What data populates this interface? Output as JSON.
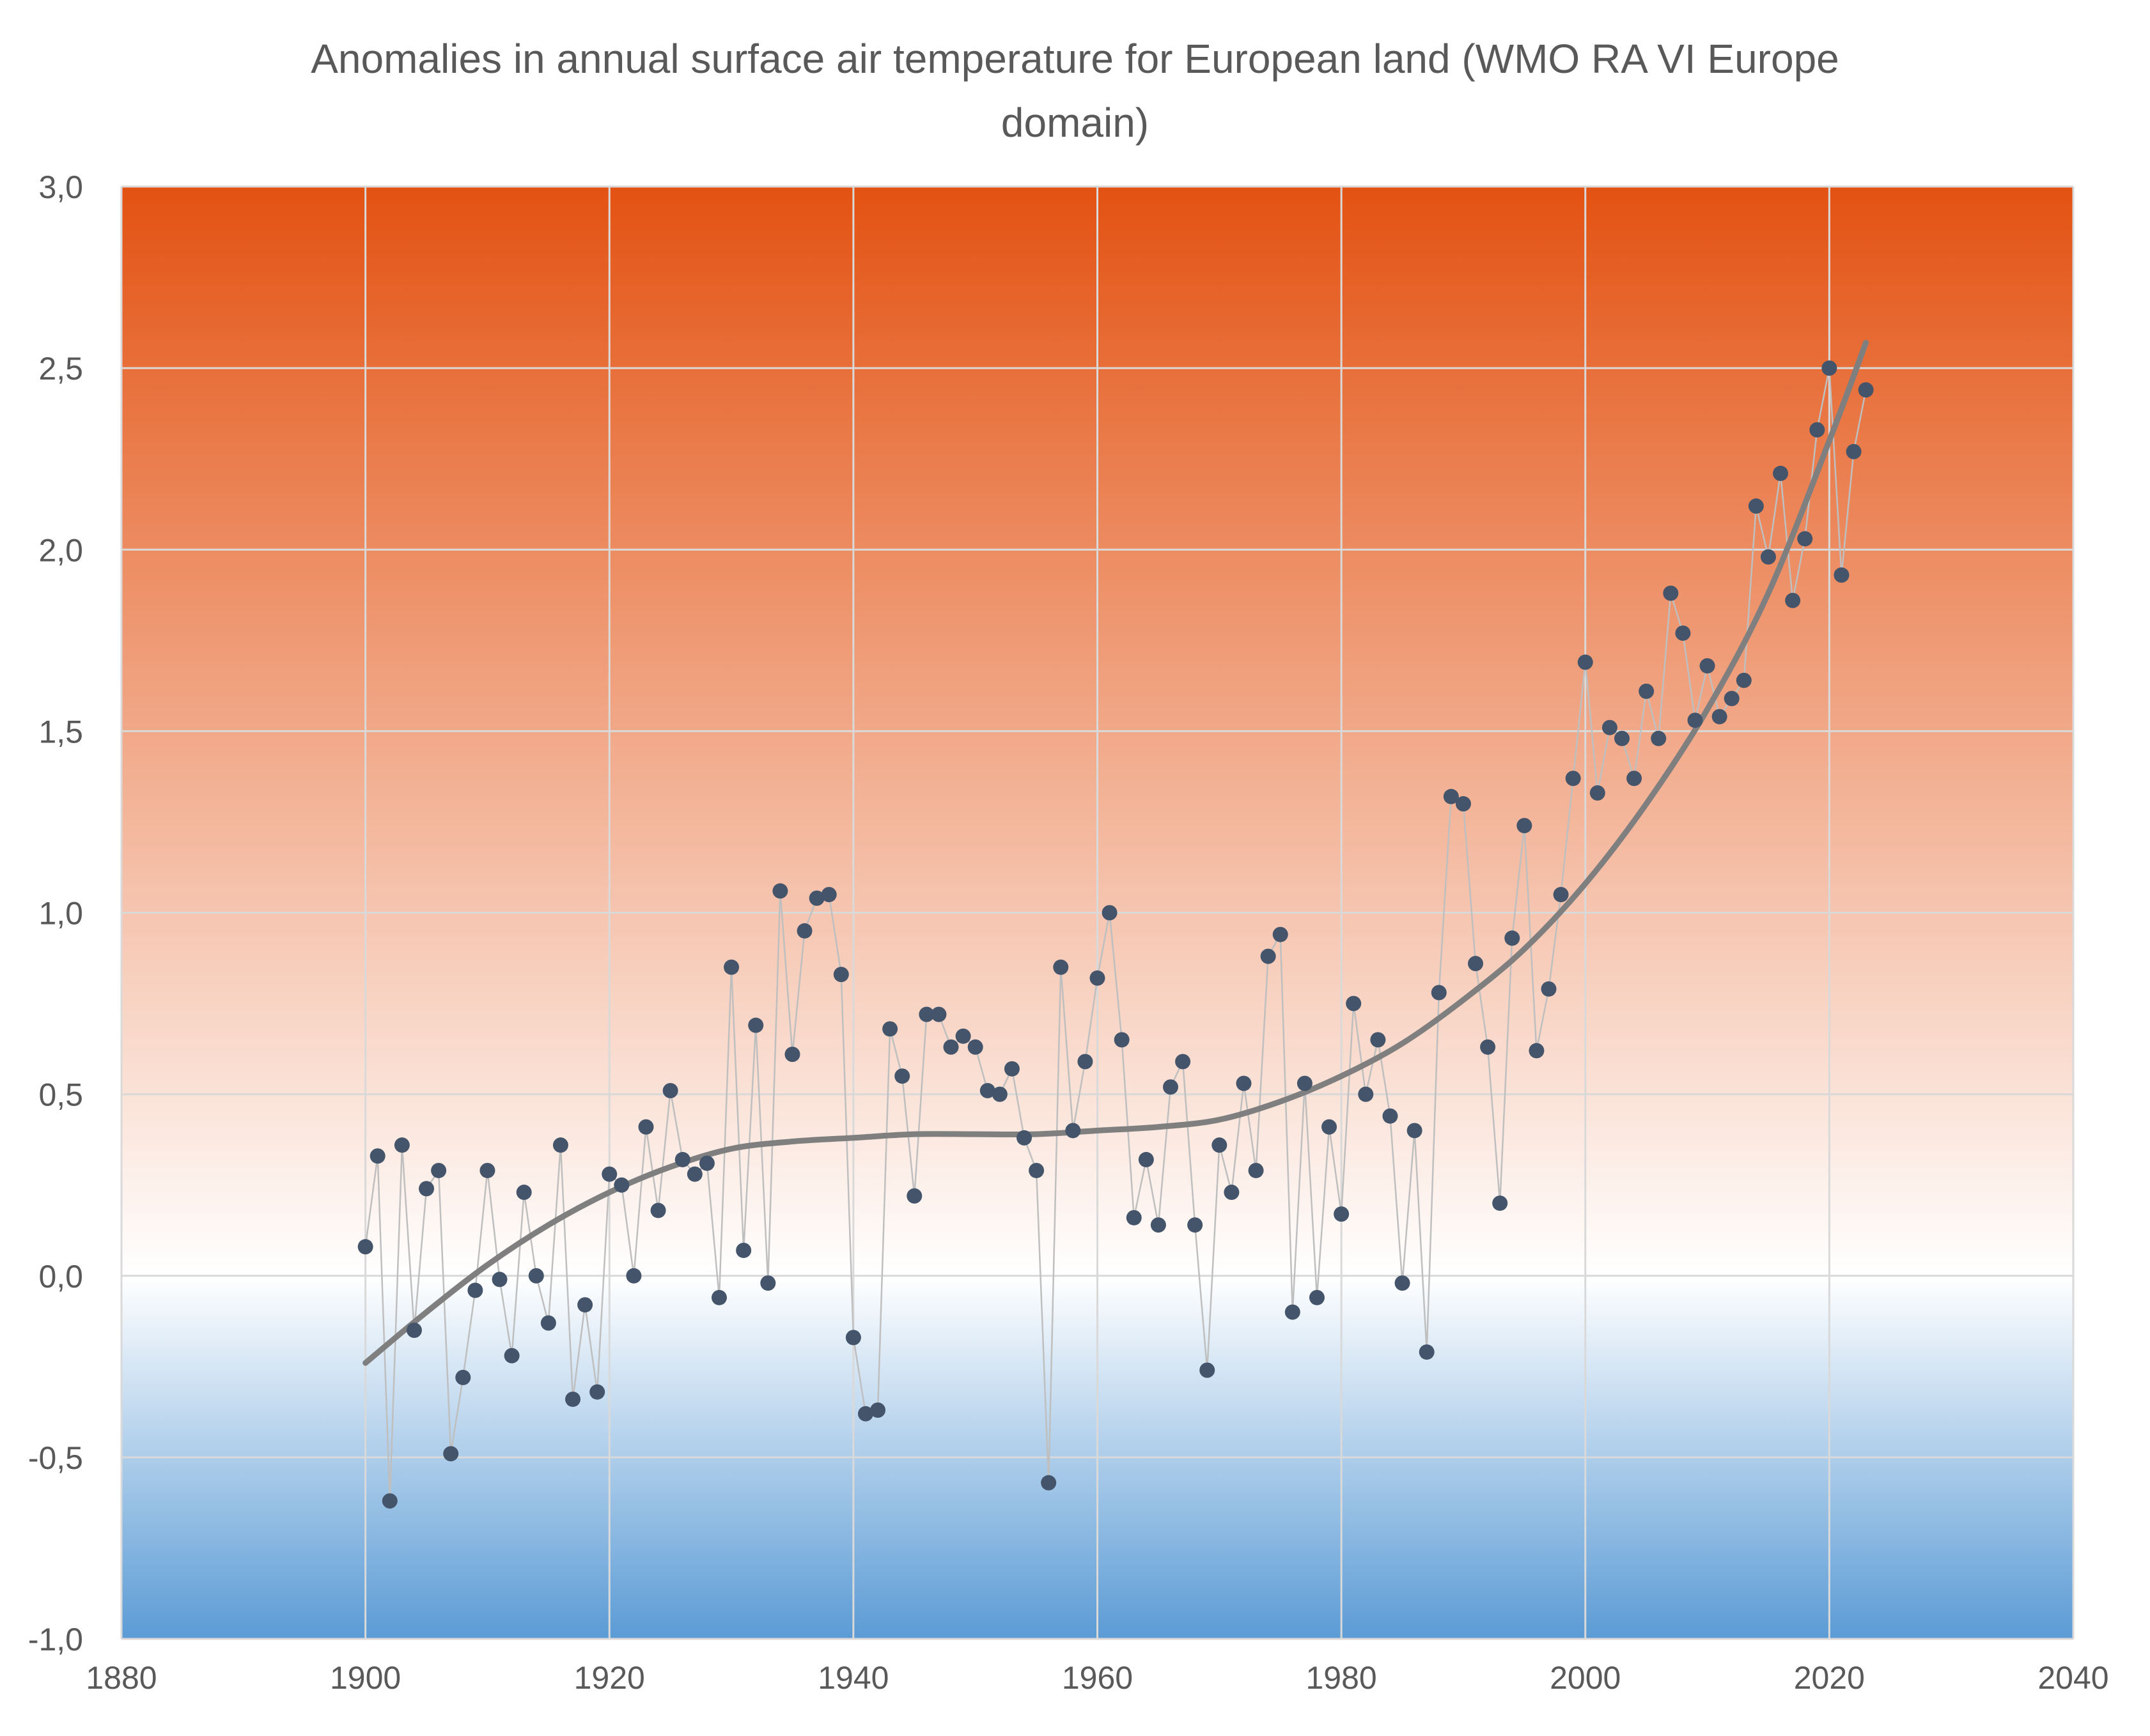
{
  "chart_data": {
    "type": "scatter",
    "title_lines": [
      "Anomalies in annual surface air temperature for European land (WMO RA VI Europe",
      "domain)"
    ],
    "xlabel": "",
    "ylabel": "",
    "xlim": [
      1880,
      2040
    ],
    "ylim": [
      -1.0,
      3.0
    ],
    "x_ticks": [
      1880,
      1900,
      1920,
      1940,
      1960,
      1980,
      2000,
      2020,
      2040
    ],
    "y_ticks": [
      -1.0,
      -0.5,
      0.0,
      0.5,
      1.0,
      1.5,
      2.0,
      2.5,
      3.0
    ],
    "x_tick_labels": [
      "1880",
      "1900",
      "1920",
      "1940",
      "1960",
      "1980",
      "2000",
      "2020",
      "2040"
    ],
    "y_tick_labels": [
      "-1,0",
      "-0,5",
      "0,0",
      "0,5",
      "1,0",
      "1,5",
      "2,0",
      "2,5",
      "3,0"
    ],
    "grid": true,
    "legend": "none",
    "background": {
      "top_color": "#e35212",
      "zero_color": "#ffffff",
      "bottom_color": "#5b9bd5"
    },
    "colors": {
      "points": "#44546a",
      "connector": "#bfbfbf",
      "trend": "#7f7f7f",
      "grid": "#d9d9d9"
    },
    "series": [
      {
        "style": "points",
        "x": [
          1900,
          1901,
          1902,
          1903,
          1904,
          1905,
          1906,
          1907,
          1908,
          1909,
          1910,
          1911,
          1912,
          1913,
          1914,
          1915,
          1916,
          1917,
          1918,
          1919,
          1920,
          1921,
          1922,
          1923,
          1924,
          1925,
          1926,
          1927,
          1928,
          1929,
          1930,
          1931,
          1932,
          1933,
          1934,
          1935,
          1936,
          1937,
          1938,
          1939,
          1940,
          1941,
          1942,
          1943,
          1944,
          1945,
          1946,
          1947,
          1948,
          1949,
          1950,
          1951,
          1952,
          1953,
          1954,
          1955,
          1956,
          1957,
          1958,
          1959,
          1960,
          1961,
          1962,
          1963,
          1964,
          1965,
          1966,
          1967,
          1968,
          1969,
          1970,
          1971,
          1972,
          1973,
          1974,
          1975,
          1976,
          1977,
          1978,
          1979,
          1980,
          1981,
          1982,
          1983,
          1984,
          1985,
          1986,
          1987,
          1988,
          1989,
          1990,
          1991,
          1992,
          1993,
          1994,
          1995,
          1996,
          1997,
          1998,
          1999,
          2000,
          2001,
          2002,
          2003,
          2004,
          2005,
          2006,
          2007,
          2008,
          2009,
          2010,
          2011,
          2012,
          2013,
          2014,
          2015,
          2016,
          2017,
          2018,
          2019,
          2020,
          2021,
          2022,
          2023
        ],
        "y": [
          0.08,
          0.33,
          -0.62,
          0.36,
          -0.15,
          0.24,
          0.29,
          -0.49,
          -0.28,
          -0.04,
          0.29,
          -0.01,
          -0.22,
          0.23,
          0.0,
          -0.13,
          0.36,
          -0.34,
          -0.08,
          -0.32,
          0.28,
          0.25,
          0.0,
          0.41,
          0.18,
          0.51,
          0.32,
          0.28,
          0.31,
          -0.06,
          0.85,
          0.07,
          0.69,
          -0.02,
          1.06,
          0.61,
          0.95,
          1.04,
          1.05,
          0.83,
          -0.17,
          -0.38,
          -0.37,
          0.68,
          0.55,
          0.22,
          0.72,
          0.72,
          0.63,
          0.66,
          0.63,
          0.51,
          0.5,
          0.57,
          0.38,
          0.29,
          -0.57,
          0.85,
          0.4,
          0.59,
          0.82,
          1.0,
          0.65,
          0.16,
          0.32,
          0.14,
          0.52,
          0.59,
          0.14,
          -0.26,
          0.36,
          0.23,
          0.53,
          0.29,
          0.88,
          0.94,
          -0.1,
          0.53,
          -0.06,
          0.41,
          0.17,
          0.75,
          0.5,
          0.65,
          0.44,
          -0.02,
          0.4,
          -0.21,
          0.78,
          1.32,
          1.3,
          0.86,
          0.63,
          0.2,
          0.93,
          1.24,
          0.62,
          0.79,
          1.05,
          1.37,
          1.69,
          1.33,
          1.51,
          1.48,
          1.37,
          1.61,
          1.48,
          1.88,
          1.77,
          1.53,
          1.68,
          1.54,
          1.59,
          1.64,
          2.12,
          1.98,
          2.21,
          1.86,
          2.03,
          2.33,
          2.5,
          1.93,
          2.27,
          2.44
        ]
      },
      {
        "style": "trendline",
        "x": [
          1900,
          1905,
          1910,
          1915,
          1920,
          1925,
          1930,
          1935,
          1940,
          1945,
          1950,
          1955,
          1960,
          1965,
          1970,
          1975,
          1980,
          1985,
          1990,
          1995,
          2000,
          2005,
          2010,
          2015,
          2020,
          2023
        ],
        "y": [
          -0.24,
          -0.1,
          0.03,
          0.14,
          0.23,
          0.3,
          0.35,
          0.37,
          0.38,
          0.39,
          0.39,
          0.39,
          0.4,
          0.41,
          0.43,
          0.48,
          0.55,
          0.64,
          0.76,
          0.9,
          1.08,
          1.3,
          1.56,
          1.88,
          2.3,
          2.57
        ]
      }
    ]
  }
}
